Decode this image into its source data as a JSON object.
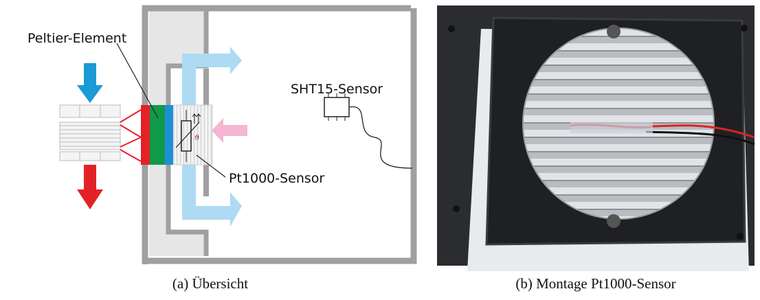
{
  "figure": {
    "panels": [
      {
        "labels": {
          "peltier": "Peltier-Element",
          "sht15": "SHT15-Sensor",
          "pt1000": "Pt1000-Sensor",
          "theta": "ϑ"
        },
        "caption": "(a) Übersicht"
      },
      {
        "caption": "(b) Montage Pt1000-Sensor"
      }
    ]
  }
}
